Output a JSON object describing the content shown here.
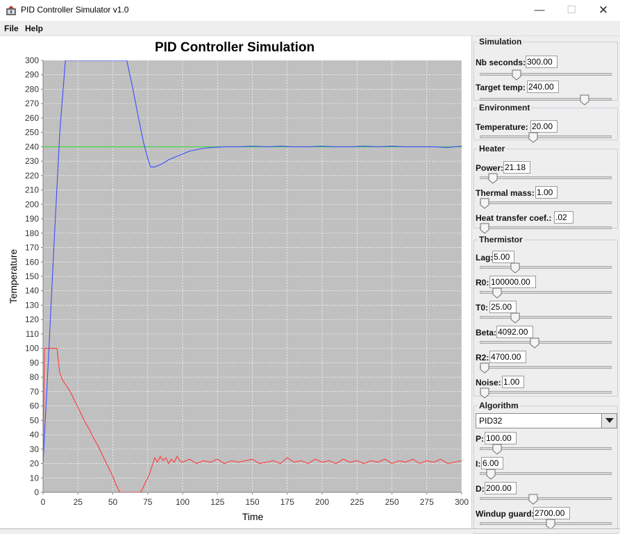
{
  "window": {
    "title": "PID Controller Simulator v1.0",
    "icon": "app-icon",
    "controls": {
      "minimize": "—",
      "maximize": "☐",
      "close": "✕"
    }
  },
  "menu": [
    "File",
    "Help"
  ],
  "colors": {
    "plot_bg": "#c0c0c0",
    "temperature_line": "#3b4cff",
    "target_line": "#33dd33",
    "heater_line": "#ff3a3a"
  },
  "chart_data": {
    "type": "line",
    "title": "PID Controller Simulation",
    "xlabel": "Time",
    "ylabel": "Temperature",
    "xlim": [
      0,
      300
    ],
    "ylim": [
      0,
      300
    ],
    "grid": true,
    "xticks": [
      0,
      25,
      50,
      75,
      100,
      125,
      150,
      175,
      200,
      225,
      250,
      275,
      300
    ],
    "yticks": [
      0,
      10,
      20,
      30,
      40,
      50,
      60,
      70,
      80,
      90,
      100,
      110,
      120,
      130,
      140,
      150,
      160,
      170,
      180,
      190,
      200,
      210,
      220,
      230,
      240,
      250,
      260,
      270,
      280,
      290,
      300
    ],
    "series": [
      {
        "color": "#3b4cff",
        "x": [
          0,
          4,
          8,
          12,
          16,
          60,
          64,
          68,
          72,
          75,
          77,
          80,
          85,
          90,
          95,
          100,
          105,
          110,
          115,
          120,
          130,
          140,
          150,
          160,
          170,
          180,
          190,
          200,
          210,
          220,
          230,
          240,
          250,
          260,
          270,
          280,
          290,
          300
        ],
        "y": [
          20,
          95,
          175,
          250,
          300,
          300,
          282,
          262,
          243,
          232,
          226,
          226,
          228,
          231,
          233,
          235,
          237,
          238,
          239,
          239.5,
          240,
          240,
          240.5,
          240,
          240.5,
          240,
          240,
          240.5,
          240,
          240,
          240.5,
          240,
          240.5,
          240,
          240,
          240,
          239.5,
          240.5
        ]
      },
      {
        "color": "#33dd33",
        "x": [
          0,
          300
        ],
        "y": [
          240,
          240
        ]
      },
      {
        "color": "#ff3a3a",
        "x": [
          0,
          1,
          3,
          10,
          11,
          12,
          14,
          16,
          18,
          20,
          22,
          24,
          26,
          28,
          30,
          33,
          36,
          39,
          42,
          45,
          48,
          50,
          52,
          55,
          70,
          72,
          74,
          76,
          78,
          80,
          82,
          84,
          86,
          88,
          90,
          92,
          94,
          96,
          98,
          100,
          105,
          110,
          115,
          120,
          125,
          130,
          135,
          140,
          145,
          150,
          155,
          160,
          165,
          170,
          175,
          180,
          185,
          190,
          195,
          200,
          205,
          210,
          215,
          220,
          225,
          230,
          235,
          240,
          245,
          250,
          255,
          260,
          265,
          270,
          275,
          280,
          285,
          290,
          295,
          300
        ],
        "y": [
          20,
          100,
          100,
          100,
          91,
          83,
          78,
          75,
          72,
          69,
          65,
          61,
          57,
          53,
          49,
          44,
          38,
          33,
          27,
          21,
          15,
          11,
          6,
          0,
          0,
          4,
          8,
          12,
          18,
          24,
          21,
          25,
          22,
          24,
          20,
          23,
          21,
          25,
          22,
          21,
          23,
          20,
          22,
          21,
          23,
          20,
          22,
          21,
          22,
          23,
          20,
          21,
          22,
          20,
          24,
          21,
          22,
          20,
          23,
          21,
          22,
          20,
          23,
          21,
          22,
          20,
          22,
          21,
          23,
          20,
          22,
          21,
          23,
          20,
          22,
          21,
          23,
          20,
          21,
          22
        ]
      }
    ]
  },
  "panel": {
    "groups": [
      {
        "title": "Simulation",
        "params": [
          {
            "label": "Nb seconds:",
            "value": "300.00",
            "slider": 0.26
          },
          {
            "label": "Target temp:",
            "value": "240.00",
            "slider": 0.82
          }
        ]
      },
      {
        "title": "Environment",
        "params": [
          {
            "label": "Temperature:",
            "value": "20.00",
            "slider": 0.4
          }
        ]
      },
      {
        "title": "Heater",
        "params": [
          {
            "label": "Power:",
            "value": "21.18",
            "slider": 0.07
          },
          {
            "label": "Thermal mass:",
            "value": "1.00",
            "slider": 0.0
          },
          {
            "label": "Heat transfer coef.:",
            "value": ".02",
            "slider": 0.0
          }
        ]
      },
      {
        "title": "Thermistor",
        "params": [
          {
            "label": "Lag:",
            "value": "5.00",
            "slider": 0.25
          },
          {
            "label": "R0:",
            "value": "100000.00",
            "slider": 0.1
          },
          {
            "label": "T0:",
            "value": "25.00",
            "slider": 0.25
          },
          {
            "label": "Beta:",
            "value": "4092.00",
            "slider": 0.41
          },
          {
            "label": "R2:",
            "value": "4700.00",
            "slider": 0.0
          },
          {
            "label": "Noise:",
            "value": "1.00",
            "slider": 0.0
          }
        ]
      },
      {
        "title": "Algorithm",
        "select": "PID32",
        "params": [
          {
            "label": "P:",
            "value": "100.00",
            "slider": 0.1
          },
          {
            "label": "I:",
            "value": "6.00",
            "slider": 0.05
          },
          {
            "label": "D:",
            "value": "200.00",
            "slider": 0.4
          },
          {
            "label": "Windup guard:",
            "value": "2700.00",
            "slider": 0.54
          }
        ]
      }
    ]
  }
}
